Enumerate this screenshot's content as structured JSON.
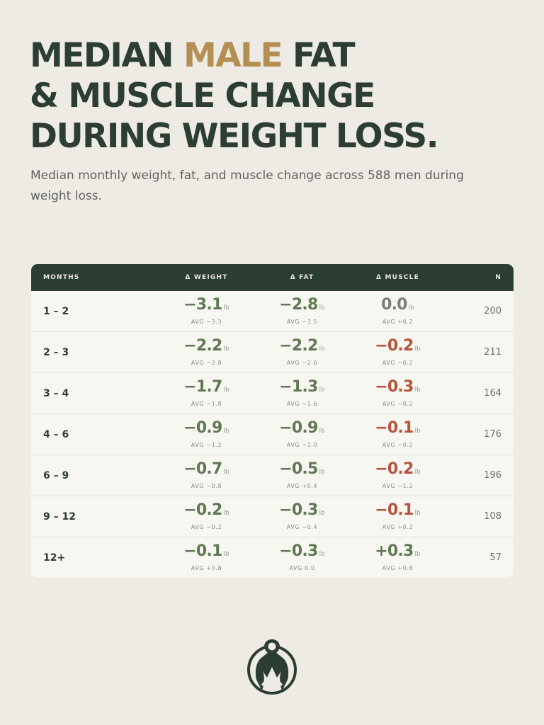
{
  "title": {
    "line1_pre": "MEDIAN ",
    "line1_accent": "MALE",
    "line1_post": " FAT",
    "line2": "& MUSCLE CHANGE",
    "line3": "DURING WEIGHT LOSS."
  },
  "subtitle": "Median monthly weight, fat, and muscle change across 588 men during weight loss.",
  "colors": {
    "background": "#EEEAE4",
    "header": "#2C3E33",
    "accent": "#B58F52",
    "loss": "#5E7A52",
    "muscle_loss": "#B5533C",
    "neutral": "#7C7C7C"
  },
  "table": {
    "headers": {
      "months": "MONTHS",
      "weight": "Δ WEIGHT",
      "fat": "Δ FAT",
      "muscle": "Δ MUSCLE",
      "n": "N"
    },
    "unit": "lb",
    "rows": [
      {
        "months": "1 – 2",
        "weight": {
          "median": "−3.1",
          "avg": "AVG −3.3",
          "tone": "g"
        },
        "fat": {
          "median": "−2.8",
          "avg": "AVG −3.5",
          "tone": "g"
        },
        "muscle": {
          "median": "0.0",
          "avg": "AVG +0.2",
          "tone": "z"
        },
        "n": "200"
      },
      {
        "months": "2 – 3",
        "weight": {
          "median": "−2.2",
          "avg": "AVG −2.8",
          "tone": "g"
        },
        "fat": {
          "median": "−2.2",
          "avg": "AVG −2.6",
          "tone": "g"
        },
        "muscle": {
          "median": "−0.2",
          "avg": "AVG −0.2",
          "tone": "r"
        },
        "n": "211"
      },
      {
        "months": "3 – 4",
        "weight": {
          "median": "−1.7",
          "avg": "AVG −1.8",
          "tone": "g"
        },
        "fat": {
          "median": "−1.3",
          "avg": "AVG −1.6",
          "tone": "g"
        },
        "muscle": {
          "median": "−0.3",
          "avg": "AVG −0.2",
          "tone": "r"
        },
        "n": "164"
      },
      {
        "months": "4 – 6",
        "weight": {
          "median": "−0.9",
          "avg": "AVG −1.2",
          "tone": "g"
        },
        "fat": {
          "median": "−0.9",
          "avg": "AVG −1.0",
          "tone": "g"
        },
        "muscle": {
          "median": "−0.1",
          "avg": "AVG −0.2",
          "tone": "r"
        },
        "n": "176"
      },
      {
        "months": "6 – 9",
        "weight": {
          "median": "−0.7",
          "avg": "AVG −0.8",
          "tone": "g"
        },
        "fat": {
          "median": "−0.5",
          "avg": "AVG +0.4",
          "tone": "g"
        },
        "muscle": {
          "median": "−0.2",
          "avg": "AVG −1.2",
          "tone": "r"
        },
        "n": "196"
      },
      {
        "months": "9 – 12",
        "weight": {
          "median": "−0.2",
          "avg": "AVG −0.2",
          "tone": "g"
        },
        "fat": {
          "median": "−0.3",
          "avg": "AVG −0.4",
          "tone": "g"
        },
        "muscle": {
          "median": "−0.1",
          "avg": "AVG +0.2",
          "tone": "r"
        },
        "n": "108"
      },
      {
        "months": "12+",
        "weight": {
          "median": "−0.1",
          "avg": "AVG +0.8",
          "tone": "g"
        },
        "fat": {
          "median": "−0.3",
          "avg": "AVG 0.0",
          "tone": "g"
        },
        "muscle": {
          "median": "+0.3",
          "avg": "AVG +0.8",
          "tone": "g"
        },
        "n": "57"
      }
    ]
  },
  "logo_icon": "mountain-figure-logo-icon"
}
